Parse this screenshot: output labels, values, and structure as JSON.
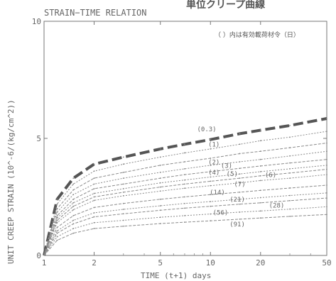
{
  "chart_data": {
    "type": "line",
    "title": "STRAIN−TIME RELATION",
    "corner_title": "単位クリープ曲線",
    "legend_note": "（ ）内は有効載荷材令（日）",
    "xlabel": "TIME (t+1) days",
    "ylabel": "UNIT CREEP STRAIN (10^-6/(kg/cm^2))",
    "x_scale": "log",
    "xlim": [
      1,
      50
    ],
    "ylim": [
      0,
      10
    ],
    "x_ticks": [
      1,
      2,
      5,
      10,
      20,
      50
    ],
    "x_tick_labels": [
      "1",
      "2",
      "5",
      "10",
      "20",
      "50"
    ],
    "y_ticks": [
      0,
      5,
      10
    ],
    "y_tick_labels": [
      "0",
      "5",
      "10"
    ],
    "grid": false,
    "legend": "labels-on-curves",
    "x": [
      1,
      1.2,
      1.5,
      2,
      3,
      5,
      7,
      10,
      15,
      20,
      30,
      50
    ],
    "series": [
      {
        "name": "(0.3)",
        "values": [
          0,
          2.4,
          3.3,
          3.9,
          4.2,
          4.55,
          4.75,
          4.95,
          5.2,
          5.35,
          5.55,
          5.85
        ]
      },
      {
        "name": "(1)",
        "values": [
          0,
          2.2,
          3.05,
          3.6,
          3.9,
          4.2,
          4.38,
          4.55,
          4.75,
          4.9,
          5.05,
          5.3
        ]
      },
      {
        "name": "(2)",
        "values": [
          0,
          2.0,
          2.8,
          3.3,
          3.55,
          3.85,
          4.0,
          4.15,
          4.35,
          4.45,
          4.6,
          4.8
        ]
      },
      {
        "name": "(3)",
        "values": [
          0,
          1.85,
          2.6,
          3.05,
          3.3,
          3.55,
          3.7,
          3.85,
          4.0,
          4.1,
          4.25,
          4.45
        ]
      },
      {
        "name": "(4)",
        "values": [
          0,
          1.7,
          2.4,
          2.85,
          3.05,
          3.3,
          3.45,
          3.58,
          3.72,
          3.82,
          3.95,
          4.1
        ]
      },
      {
        "name": "(5)",
        "values": [
          0,
          1.6,
          2.25,
          2.65,
          2.85,
          3.1,
          3.22,
          3.35,
          3.48,
          3.58,
          3.7,
          3.85
        ]
      },
      {
        "name": "(6)",
        "values": [
          0,
          1.5,
          2.1,
          2.5,
          2.7,
          2.92,
          3.05,
          3.17,
          3.3,
          3.4,
          3.52,
          3.68
        ]
      },
      {
        "name": "(7)",
        "values": [
          0,
          1.4,
          1.95,
          2.35,
          2.55,
          2.75,
          2.87,
          2.98,
          3.1,
          3.2,
          3.3,
          3.45
        ]
      },
      {
        "name": "(14)",
        "values": [
          0,
          1.2,
          1.7,
          2.05,
          2.22,
          2.4,
          2.5,
          2.6,
          2.7,
          2.78,
          2.88,
          3.0
        ]
      },
      {
        "name": "(21)",
        "values": [
          0,
          1.05,
          1.5,
          1.82,
          1.97,
          2.12,
          2.22,
          2.3,
          2.4,
          2.47,
          2.56,
          2.67
        ]
      },
      {
        "name": "(28)",
        "values": [
          0,
          0.95,
          1.35,
          1.65,
          1.78,
          1.93,
          2.02,
          2.1,
          2.19,
          2.25,
          2.34,
          2.45
        ]
      },
      {
        "name": "(56)",
        "values": [
          0,
          0.8,
          1.15,
          1.4,
          1.5,
          1.63,
          1.7,
          1.77,
          1.85,
          1.9,
          1.98,
          2.08
        ]
      },
      {
        "name": "(91)",
        "values": [
          0,
          0.65,
          0.95,
          1.15,
          1.25,
          1.36,
          1.42,
          1.48,
          1.55,
          1.6,
          1.67,
          1.75
        ]
      }
    ],
    "curve_labels": [
      {
        "text": "(0.3)",
        "x": 9.5,
        "y": 5.3
      },
      {
        "text": "(1)",
        "x": 10.5,
        "y": 4.65
      },
      {
        "text": "(2)",
        "x": 10.5,
        "y": 3.9
      },
      {
        "text": "(3)",
        "x": 12.5,
        "y": 3.75
      },
      {
        "text": "(4)",
        "x": 10.5,
        "y": 3.45
      },
      {
        "text": "(5)",
        "x": 13.5,
        "y": 3.4
      },
      {
        "text": "(6)",
        "x": 23,
        "y": 3.35
      },
      {
        "text": "(7)",
        "x": 15,
        "y": 2.95
      },
      {
        "text": "(14)",
        "x": 11,
        "y": 2.6
      },
      {
        "text": "(21)",
        "x": 14.5,
        "y": 2.3
      },
      {
        "text": "(28)",
        "x": 25,
        "y": 2.05
      },
      {
        "text": "(56)",
        "x": 11.5,
        "y": 1.75
      },
      {
        "text": "(91)",
        "x": 14.5,
        "y": 1.25
      }
    ]
  }
}
